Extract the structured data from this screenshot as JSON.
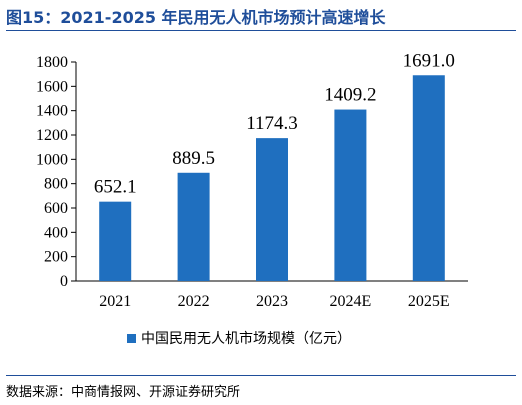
{
  "header": {
    "title": "图15：2021-2025 年民用无人机市场预计高速增长"
  },
  "footer": {
    "source": "数据来源：中商情报网、开源证券研究所"
  },
  "colors": {
    "bar": "#1f6fbf",
    "accent": "#1f4e9a"
  },
  "chart_data": {
    "type": "bar",
    "categories": [
      "2021",
      "2022",
      "2023",
      "2024E",
      "2025E"
    ],
    "series": [
      {
        "name": "中国民用无人机市场规模（亿元）",
        "values": [
          652.1,
          889.5,
          1174.3,
          1409.2,
          1691.0
        ],
        "labels": [
          "652.1",
          "889.5",
          "1174.3",
          "1409.2",
          "1691.0"
        ]
      }
    ],
    "ylim": [
      0,
      1800
    ],
    "yticks": [
      0,
      200,
      400,
      600,
      800,
      1000,
      1200,
      1400,
      1600,
      1800
    ],
    "grid": false,
    "legend_position": "bottom"
  }
}
